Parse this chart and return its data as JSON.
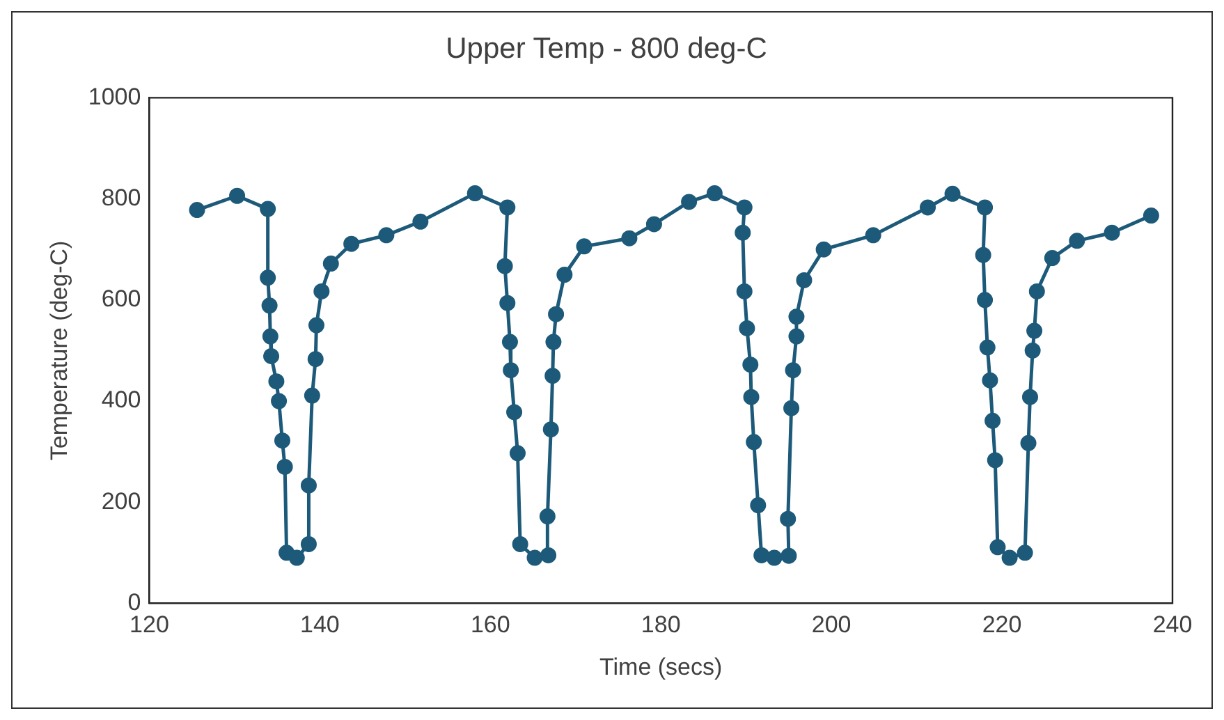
{
  "chart_data": {
    "type": "line",
    "title": "Upper Temp - 800 deg-C",
    "xlabel": "Time (secs)",
    "ylabel": "Temperature (deg-C)",
    "xlim": [
      120,
      240
    ],
    "xticks": [
      120,
      140,
      160,
      180,
      200,
      220,
      240
    ],
    "ylim": [
      0,
      1000
    ],
    "yticks": [
      0,
      200,
      400,
      600,
      800,
      1000
    ],
    "grid": false,
    "legend": false,
    "marker": "circle",
    "line_style": "solid",
    "series": [
      {
        "color": "#1d5a7a",
        "x": [
          125.6,
          130.3,
          133.9,
          133.9,
          134.1,
          134.2,
          134.3,
          134.9,
          135.2,
          135.6,
          135.9,
          136.1,
          137.3,
          138.7,
          138.7,
          139.1,
          139.5,
          139.6,
          140.2,
          141.3,
          143.7,
          147.8,
          151.8,
          158.2,
          162.0,
          161.7,
          162.0,
          162.3,
          162.4,
          162.8,
          163.2,
          163.5,
          165.2,
          166.8,
          166.7,
          167.1,
          167.3,
          167.4,
          167.7,
          168.7,
          171.0,
          176.3,
          179.2,
          183.3,
          186.3,
          189.8,
          189.6,
          189.8,
          190.1,
          190.5,
          190.6,
          190.9,
          191.4,
          191.8,
          193.3,
          195.0,
          194.9,
          195.3,
          195.5,
          195.9,
          195.9,
          196.8,
          199.1,
          204.9,
          211.3,
          214.2,
          218.0,
          217.8,
          218.0,
          218.3,
          218.6,
          218.9,
          219.2,
          219.5,
          220.9,
          222.7,
          223.1,
          223.3,
          223.6,
          223.8,
          224.1,
          225.9,
          228.8,
          232.9,
          237.5
        ],
        "values": [
          778,
          806,
          780,
          644,
          589,
          528,
          489,
          439,
          400,
          322,
          270,
          100,
          90,
          117,
          233,
          411,
          483,
          550,
          617,
          672,
          711,
          728,
          755,
          811,
          783,
          667,
          594,
          517,
          461,
          378,
          297,
          117,
          90,
          95,
          172,
          344,
          450,
          517,
          572,
          650,
          706,
          722,
          750,
          794,
          811,
          783,
          733,
          617,
          544,
          472,
          408,
          319,
          194,
          95,
          90,
          94,
          167,
          386,
          461,
          528,
          567,
          639,
          700,
          728,
          783,
          810,
          783,
          689,
          600,
          506,
          441,
          361,
          283,
          111,
          90,
          100,
          317,
          408,
          500,
          539,
          617,
          683,
          717,
          733,
          767
        ]
      }
    ]
  }
}
